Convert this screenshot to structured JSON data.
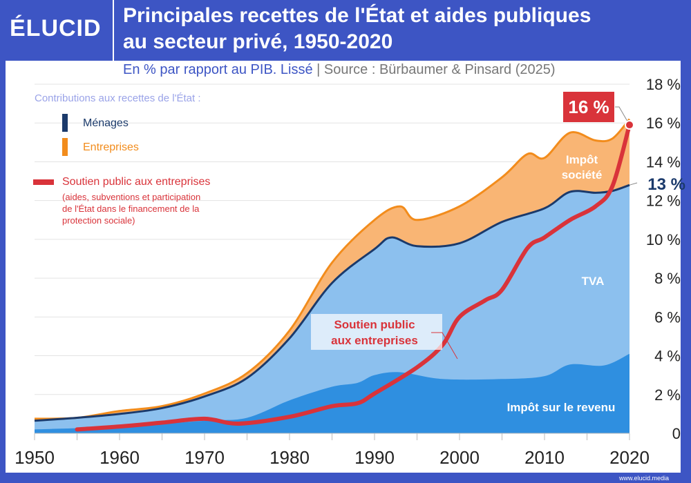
{
  "header": {
    "logo": "ÉLUCID",
    "title_line1": "Principales recettes de l'État et aides publiques",
    "title_line2": "au secteur privé, 1950-2020"
  },
  "subtitle": {
    "unit": "En % par rapport au PIB. Lissé",
    "separator": "|",
    "source": "Source : Bürbaumer & Pinsard (2025)"
  },
  "legend": {
    "heading": "Contributions aux recettes de l'État :",
    "menages": "Ménages",
    "entreprises": "Entreprises",
    "soutien": "Soutien public aux entreprises",
    "soutien_note": [
      "(aides, subventions et participation",
      "de l'État dans le financement de la",
      "protection sociale)"
    ]
  },
  "footer": "www.elucid.media",
  "colors": {
    "bg": "#3d55c4",
    "income": "#2f8fe0",
    "tva": "#8cc0ee",
    "corp": "#f9b574",
    "menages_line": "#1b3a6b",
    "entreprises_line": "#f28c1c",
    "soutien": "#d9333a"
  },
  "chart_data": {
    "type": "area",
    "xlim": [
      1950,
      2020
    ],
    "ylim": [
      0,
      18
    ],
    "xticks": [
      "1950",
      "1960",
      "1970",
      "1980",
      "1990",
      "2000",
      "2010",
      "2020"
    ],
    "yticks": [
      "0",
      "2 %",
      "4 %",
      "6 %",
      "8 %",
      "10 %",
      "12 %",
      "14 %",
      "16 %",
      "18 %"
    ],
    "series": [
      {
        "name": "Impôt sur le revenu",
        "x": [
          1950,
          1960,
          1970,
          1975,
          1980,
          1985,
          1988,
          1990,
          1993,
          1998,
          2005,
          2010,
          2013,
          2017,
          2020
        ],
        "values": [
          0.2,
          0.35,
          0.65,
          0.8,
          1.7,
          2.4,
          2.6,
          3.0,
          3.15,
          2.8,
          2.8,
          2.95,
          3.55,
          3.5,
          4.1
        ]
      },
      {
        "name": "Ménages (total, incl. TVA)",
        "x": [
          1950,
          1955,
          1960,
          1965,
          1970,
          1975,
          1980,
          1985,
          1990,
          1992,
          1995,
          2000,
          2005,
          2010,
          2013,
          2016,
          2018,
          2020
        ],
        "values": [
          0.65,
          0.8,
          1.0,
          1.3,
          1.9,
          2.85,
          4.9,
          7.75,
          9.5,
          10.1,
          9.65,
          9.8,
          10.9,
          11.6,
          12.45,
          12.4,
          12.5,
          12.8
        ]
      },
      {
        "name": "Total incl. entreprises (Impôt société)",
        "x": [
          1950,
          1955,
          1960,
          1965,
          1970,
          1975,
          1980,
          1985,
          1990,
          1993,
          1995,
          2000,
          2005,
          2008,
          2010,
          2013,
          2016,
          2018,
          2020
        ],
        "values": [
          0.75,
          0.8,
          1.15,
          1.4,
          2.05,
          3.1,
          5.3,
          8.8,
          11.0,
          11.7,
          11.0,
          11.7,
          13.2,
          14.4,
          14.2,
          15.5,
          15.1,
          15.2,
          16.2
        ]
      },
      {
        "name": "Soutien public aux entreprises",
        "x": [
          1955,
          1960,
          1965,
          1970,
          1974,
          1980,
          1985,
          1988,
          1990,
          1995,
          1998,
          2000,
          2003,
          2005,
          2008,
          2010,
          2013,
          2016,
          2018,
          2020
        ],
        "values": [
          0.2,
          0.35,
          0.55,
          0.75,
          0.5,
          0.85,
          1.4,
          1.55,
          2.05,
          3.4,
          4.55,
          6.0,
          6.85,
          7.4,
          9.55,
          10.1,
          11.0,
          11.7,
          12.75,
          15.9
        ]
      }
    ],
    "area_labels": {
      "income": "Impôt sur le revenu",
      "tva": "TVA",
      "corp1": "Impôt",
      "corp2": "société",
      "soutien1": "Soutien public",
      "soutien2": "aux entreprises"
    },
    "annotations": {
      "soutien_end": "16 %",
      "menages_end": "13 %"
    }
  }
}
